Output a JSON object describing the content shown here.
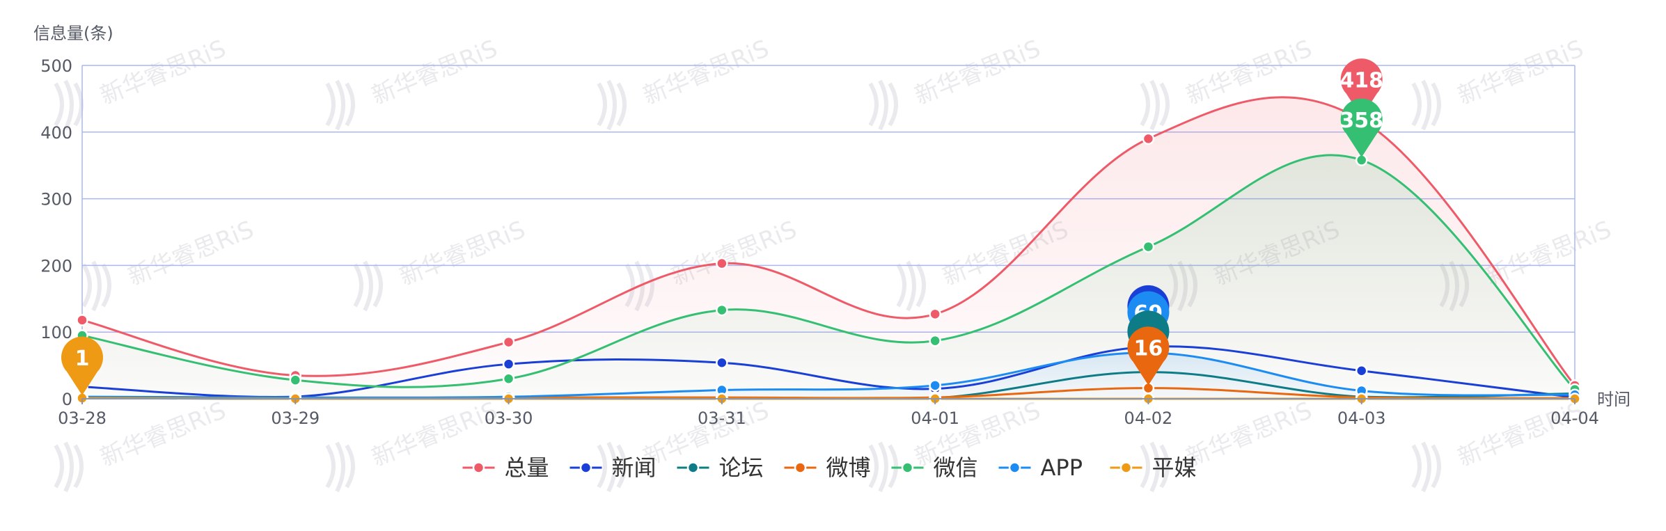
{
  "chart_data": {
    "type": "line",
    "ylabel": "信息量(条)",
    "xlabel": "时间",
    "ylim": [
      0,
      500
    ],
    "yticks": [
      0,
      100,
      200,
      300,
      400,
      500
    ],
    "categories": [
      "03-28",
      "03-29",
      "03-30",
      "03-31",
      "04-01",
      "04-02",
      "04-03",
      "04-04"
    ],
    "smooth": true,
    "grid": true,
    "legend_position": "bottom-center",
    "series": [
      {
        "name": "总量",
        "color": "#ee5a67",
        "area": true,
        "values": [
          118,
          35,
          85,
          203,
          127,
          390,
          418,
          20
        ]
      },
      {
        "name": "新闻",
        "color": "#1a3fd6",
        "area": false,
        "values": [
          18,
          3,
          52,
          54,
          15,
          78,
          42,
          2
        ]
      },
      {
        "name": "论坛",
        "color": "#0e7c86",
        "area": false,
        "values": [
          1,
          0,
          1,
          1,
          1,
          40,
          3,
          8
        ]
      },
      {
        "name": "微博",
        "color": "#e8670f",
        "area": false,
        "values": [
          2,
          1,
          2,
          2,
          2,
          16,
          2,
          1
        ]
      },
      {
        "name": "微信",
        "color": "#34bf72",
        "area": true,
        "values": [
          95,
          28,
          30,
          133,
          87,
          228,
          358,
          14
        ]
      },
      {
        "name": "APP",
        "color": "#1c8cf2",
        "area": true,
        "values": [
          3,
          2,
          3,
          13,
          20,
          69,
          12,
          6
        ]
      },
      {
        "name": "平媒",
        "color": "#ee9a14",
        "area": false,
        "values": [
          1,
          0,
          0,
          0,
          0,
          0,
          0,
          0
        ]
      }
    ],
    "markers": [
      {
        "series": "平媒",
        "category": "03-28",
        "label": "1",
        "color": "#ee9a14"
      },
      {
        "series": "新闻",
        "category": "04-02",
        "label": "",
        "color": "#1a3fd6"
      },
      {
        "series": "APP",
        "category": "04-02",
        "label": "69",
        "color": "#1c8cf2"
      },
      {
        "series": "论坛",
        "category": "04-02",
        "label": "",
        "color": "#0e7c86"
      },
      {
        "series": "微博",
        "category": "04-02",
        "label": "16",
        "color": "#e8670f"
      },
      {
        "series": "总量",
        "category": "04-03",
        "label": "418",
        "color": "#ee5a67"
      },
      {
        "series": "微信",
        "category": "04-03",
        "label": "358",
        "color": "#34bf72"
      }
    ]
  },
  "watermark": {
    "text": "新华睿思RiS",
    "color": "#e8e8ec"
  }
}
